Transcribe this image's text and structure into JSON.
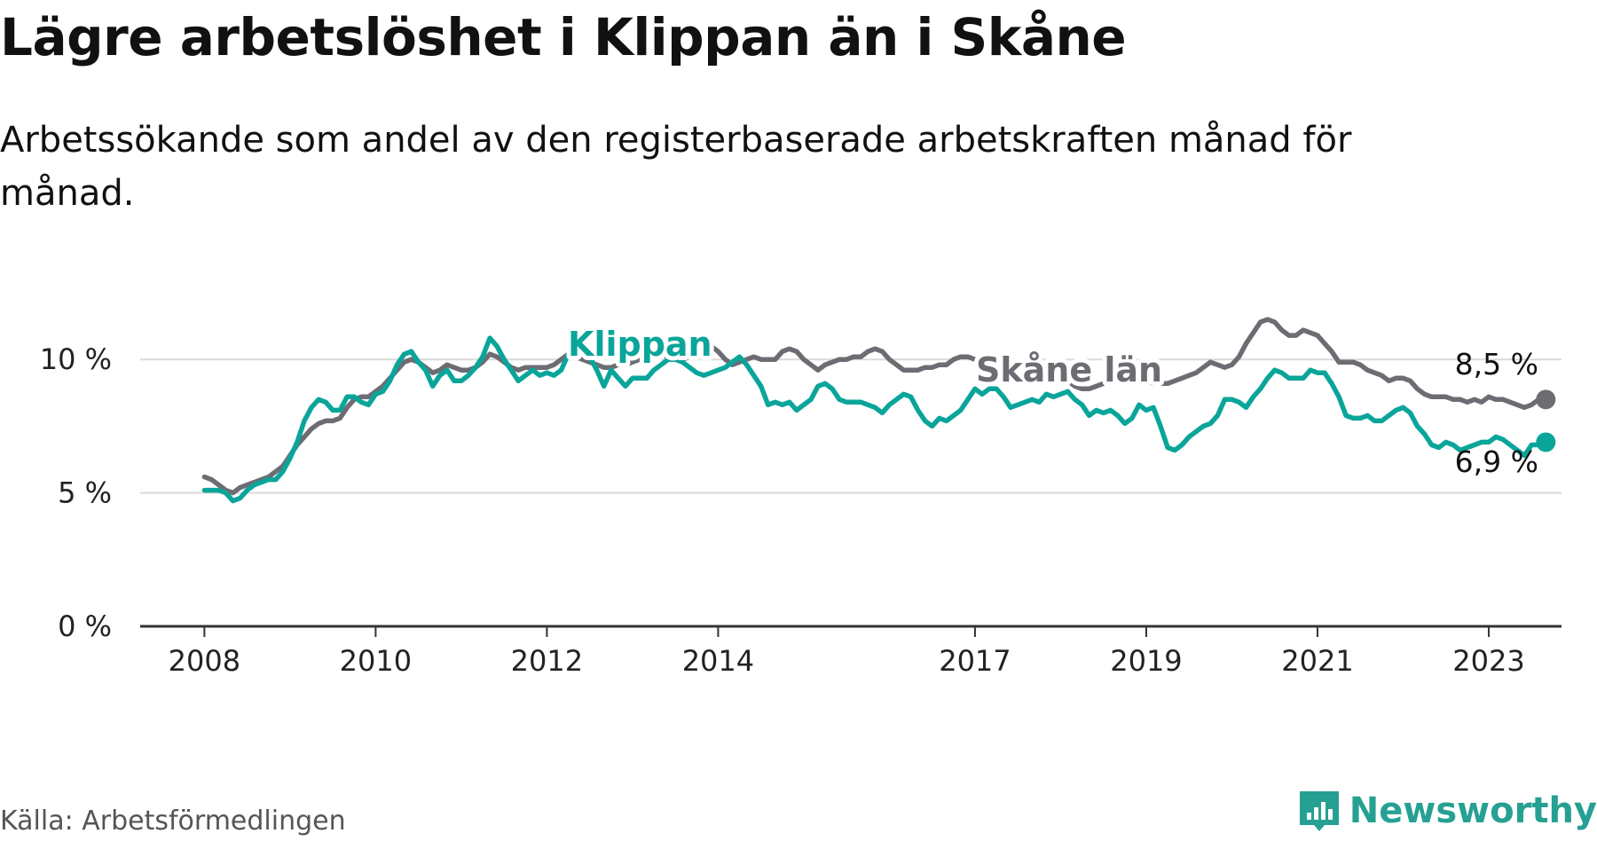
{
  "title": "Lägre arbetslöshet i Klippan än i Skåne",
  "subtitle": "Arbetssökande som andel av den registerbaserade arbetskraften månad för månad.",
  "source": "Källa: Arbetsförmedlingen",
  "logo_text": "Newsworthy",
  "colors": {
    "klippan": "#0aa59a",
    "skane": "#6e6c73",
    "grid": "#d9d9d9",
    "axis": "#333333"
  },
  "chart_data": {
    "type": "line",
    "x_start": 2008.0,
    "x_step": 0.0833333,
    "xlim": [
      2007.25,
      2023.85
    ],
    "ylim": [
      0,
      12.5
    ],
    "yticks": [
      0,
      5,
      10
    ],
    "ytick_labels": [
      "0 %",
      "5 %",
      "10 %"
    ],
    "xticks": [
      2008,
      2010,
      2012,
      2014,
      2017,
      2019,
      2021,
      2023
    ],
    "xtick_labels": [
      "2008",
      "2010",
      "2012",
      "2014",
      "2017",
      "2019",
      "2021",
      "2023"
    ],
    "series": [
      {
        "name": "Skåne län",
        "end_label": "8,5 %",
        "values": [
          5.6,
          5.5,
          5.3,
          5.1,
          5.0,
          5.2,
          5.3,
          5.4,
          5.5,
          5.6,
          5.8,
          6.0,
          6.4,
          6.8,
          7.1,
          7.4,
          7.6,
          7.7,
          7.7,
          7.8,
          8.2,
          8.5,
          8.6,
          8.6,
          8.8,
          9.0,
          9.3,
          9.6,
          9.9,
          10.0,
          9.9,
          9.7,
          9.5,
          9.6,
          9.8,
          9.7,
          9.6,
          9.6,
          9.7,
          9.9,
          10.2,
          10.1,
          9.9,
          9.7,
          9.6,
          9.7,
          9.7,
          9.7,
          9.7,
          9.8,
          10.0,
          10.2,
          10.1,
          10.0,
          9.9,
          9.8,
          9.7,
          9.7,
          9.8,
          9.8,
          9.9,
          10.0,
          10.2,
          10.3,
          10.2,
          10.1,
          10.0,
          10.0,
          10.1,
          10.2,
          10.4,
          10.5,
          10.3,
          10.0,
          9.8,
          9.9,
          10.0,
          10.1,
          10.0,
          10.0,
          10.0,
          10.3,
          10.4,
          10.3,
          10.0,
          9.8,
          9.6,
          9.8,
          9.9,
          10.0,
          10.0,
          10.1,
          10.1,
          10.3,
          10.4,
          10.3,
          10.0,
          9.8,
          9.6,
          9.6,
          9.6,
          9.7,
          9.7,
          9.8,
          9.8,
          10.0,
          10.1,
          10.1,
          10.0,
          9.8,
          9.6,
          9.5,
          9.4,
          9.4,
          9.4,
          9.4,
          9.5,
          9.5,
          9.4,
          9.3,
          9.3,
          9.2,
          9.0,
          8.9,
          8.9,
          9.0,
          9.1,
          9.2,
          9.2,
          9.3,
          9.3,
          9.3,
          9.2,
          9.1,
          9.1,
          9.1,
          9.2,
          9.3,
          9.4,
          9.5,
          9.7,
          9.9,
          9.8,
          9.7,
          9.8,
          10.1,
          10.6,
          11.0,
          11.4,
          11.5,
          11.4,
          11.1,
          10.9,
          10.9,
          11.1,
          11.0,
          10.9,
          10.6,
          10.3,
          9.9,
          9.9,
          9.9,
          9.8,
          9.6,
          9.5,
          9.4,
          9.2,
          9.3,
          9.3,
          9.2,
          8.9,
          8.7,
          8.6,
          8.6,
          8.6,
          8.5,
          8.5,
          8.4,
          8.5,
          8.4,
          8.6,
          8.5,
          8.5,
          8.4,
          8.3,
          8.2,
          8.3,
          8.5,
          8.5
        ]
      },
      {
        "name": "Klippan",
        "end_label": "6,9 %",
        "values": [
          5.1,
          5.1,
          5.1,
          5.0,
          4.7,
          4.8,
          5.1,
          5.3,
          5.4,
          5.5,
          5.5,
          5.8,
          6.3,
          6.9,
          7.7,
          8.2,
          8.5,
          8.4,
          8.1,
          8.1,
          8.6,
          8.6,
          8.4,
          8.3,
          8.7,
          8.8,
          9.2,
          9.8,
          10.2,
          10.3,
          9.9,
          9.6,
          9.0,
          9.4,
          9.6,
          9.2,
          9.2,
          9.4,
          9.7,
          10.1,
          10.8,
          10.5,
          10.0,
          9.6,
          9.2,
          9.4,
          9.6,
          9.4,
          9.5,
          9.4,
          9.6,
          10.2,
          10.4,
          10.7,
          10.1,
          9.6,
          9.0,
          9.6,
          9.3,
          9.0,
          9.3,
          9.3,
          9.3,
          9.6,
          9.8,
          10.0,
          10.0,
          9.9,
          9.7,
          9.5,
          9.4,
          9.5,
          9.6,
          9.7,
          9.9,
          10.1,
          9.8,
          9.4,
          9.0,
          8.3,
          8.4,
          8.3,
          8.4,
          8.1,
          8.3,
          8.5,
          9.0,
          9.1,
          8.9,
          8.5,
          8.4,
          8.4,
          8.4,
          8.3,
          8.2,
          8.0,
          8.3,
          8.5,
          8.7,
          8.6,
          8.1,
          7.7,
          7.5,
          7.8,
          7.7,
          7.9,
          8.1,
          8.5,
          8.9,
          8.7,
          8.9,
          8.9,
          8.6,
          8.2,
          8.3,
          8.4,
          8.5,
          8.4,
          8.7,
          8.6,
          8.7,
          8.8,
          8.5,
          8.3,
          7.9,
          8.1,
          8.0,
          8.1,
          7.9,
          7.6,
          7.8,
          8.3,
          8.1,
          8.2,
          7.5,
          6.7,
          6.6,
          6.8,
          7.1,
          7.3,
          7.5,
          7.6,
          7.9,
          8.5,
          8.5,
          8.4,
          8.2,
          8.6,
          8.9,
          9.3,
          9.6,
          9.5,
          9.3,
          9.3,
          9.3,
          9.6,
          9.5,
          9.5,
          9.1,
          8.6,
          7.9,
          7.8,
          7.8,
          7.9,
          7.7,
          7.7,
          7.9,
          8.1,
          8.2,
          8.0,
          7.5,
          7.2,
          6.8,
          6.7,
          6.9,
          6.8,
          6.6,
          6.7,
          6.8,
          6.9,
          6.9,
          7.1,
          7.0,
          6.8,
          6.6,
          6.4,
          6.8,
          6.8,
          6.9
        ]
      }
    ]
  }
}
